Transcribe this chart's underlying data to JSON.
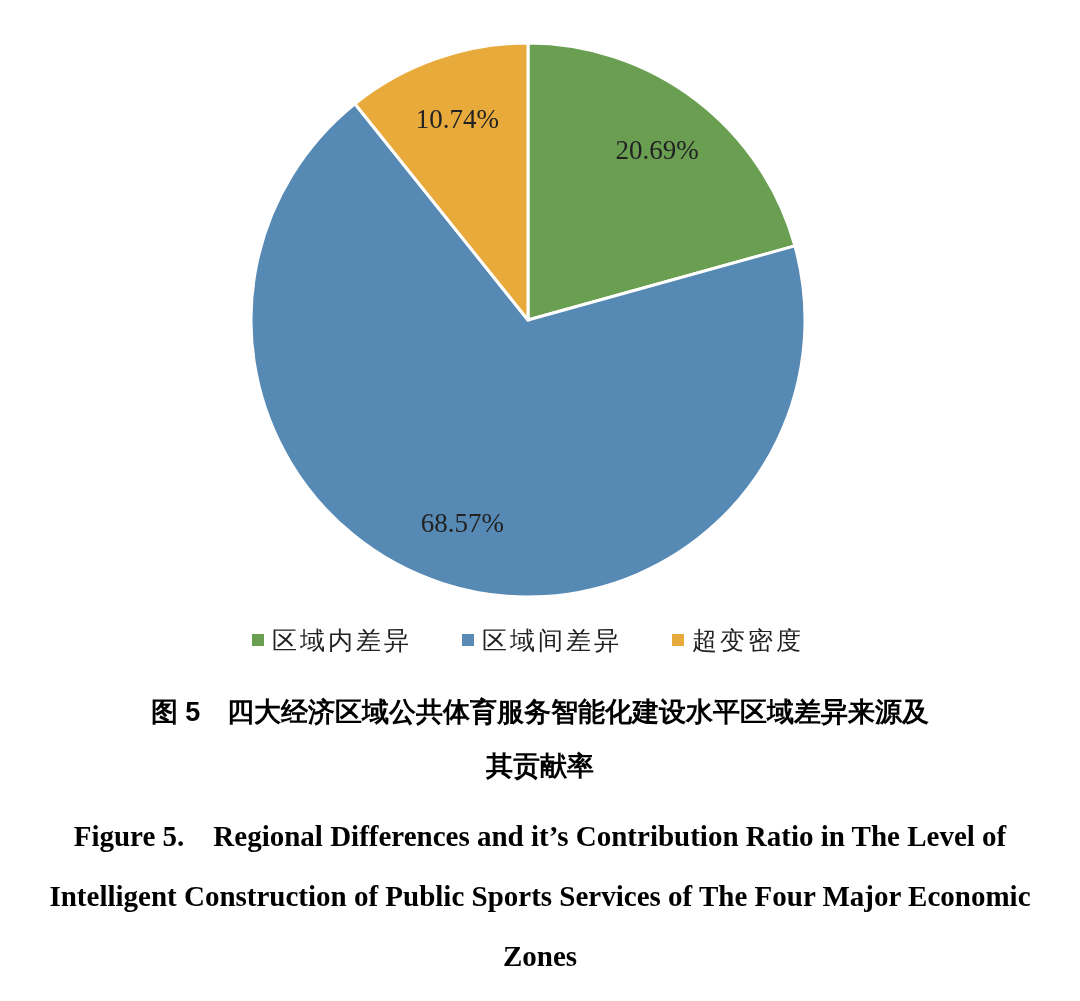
{
  "chart_data": {
    "type": "pie",
    "title": "图 5　四大经济区域公共体育服务智能化建设水平区域差异来源及其贡献率",
    "subtitle": "Figure 5.　Regional Differences and it’s Contribution Ratio in The Level of Intelligent Construction of Public Sports Services of The Four Major Economic Zones",
    "categories": [
      "区域内差异",
      "区域间差异",
      "超变密度"
    ],
    "values": [
      20.69,
      68.57,
      10.74
    ],
    "colors": [
      "#6a9f52",
      "#5789b5",
      "#e9aa3c"
    ],
    "value_labels": [
      "20.69%",
      "68.57%",
      "10.74%"
    ],
    "legend": "bottom"
  }
}
